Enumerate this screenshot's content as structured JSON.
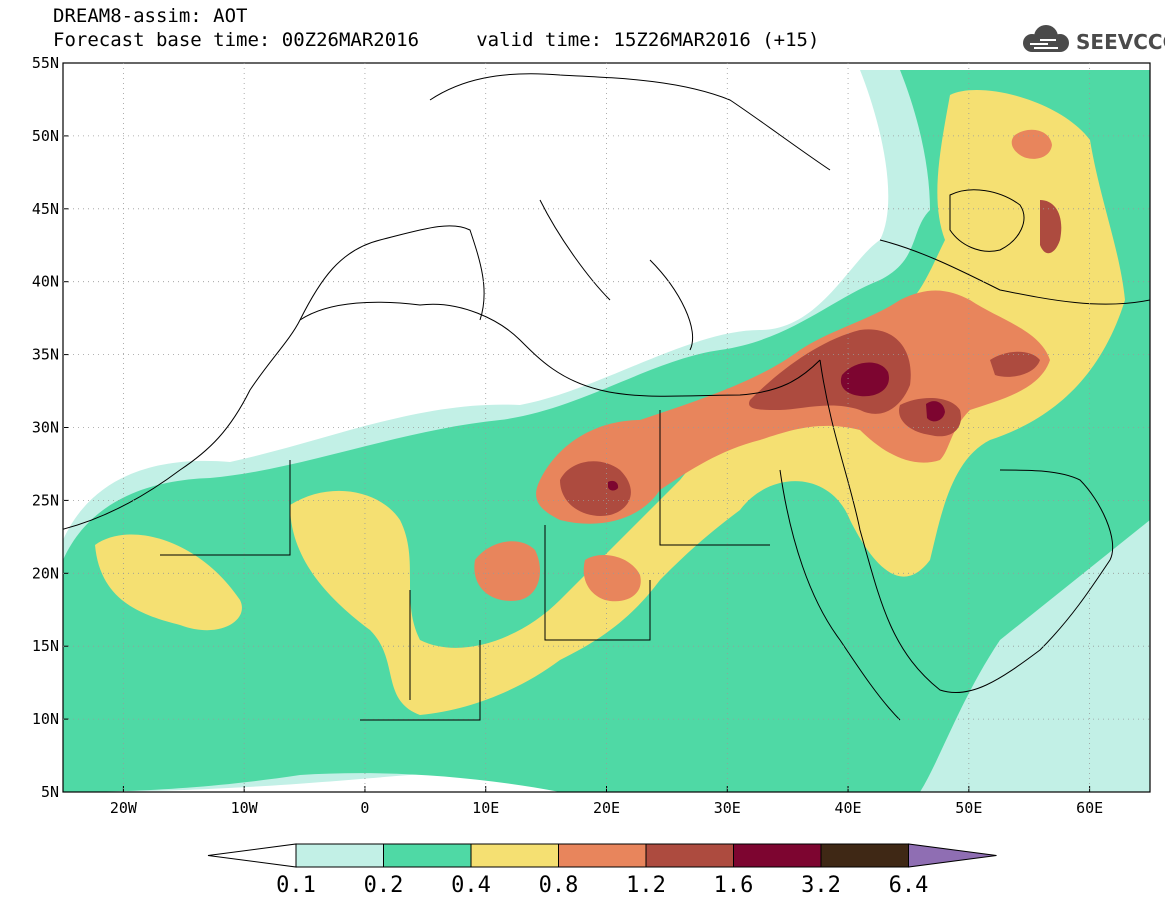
{
  "header": {
    "line1": "DREAM8-assim: AOT",
    "line2": "Forecast base time: 00Z26MAR2016     valid time: 15Z26MAR2016 (+15)"
  },
  "logo": {
    "text": "SEEVCCC",
    "icon": "cloud-icon",
    "color": "#4a4a4a"
  },
  "map": {
    "lon_range": [
      -25,
      65
    ],
    "lat_range": [
      5,
      55
    ],
    "lat_labels": [
      {
        "value": 55,
        "text": "55N"
      },
      {
        "value": 50,
        "text": "50N"
      },
      {
        "value": 45,
        "text": "45N"
      },
      {
        "value": 40,
        "text": "40N"
      },
      {
        "value": 35,
        "text": "35N"
      },
      {
        "value": 30,
        "text": "30N"
      },
      {
        "value": 25,
        "text": "25N"
      },
      {
        "value": 20,
        "text": "20N"
      },
      {
        "value": 15,
        "text": "15N"
      },
      {
        "value": 10,
        "text": "10N"
      },
      {
        "value": 5,
        "text": "5N"
      }
    ],
    "lon_labels": [
      {
        "value": -20,
        "text": "20W"
      },
      {
        "value": -10,
        "text": "10W"
      },
      {
        "value": 0,
        "text": "0"
      },
      {
        "value": 10,
        "text": "10E"
      },
      {
        "value": 20,
        "text": "20E"
      },
      {
        "value": 30,
        "text": "30E"
      },
      {
        "value": 40,
        "text": "40E"
      },
      {
        "value": 50,
        "text": "50E"
      },
      {
        "value": 60,
        "text": "60E"
      }
    ],
    "dust_fields": [
      {
        "level": 0.1,
        "lon": 20,
        "lat": 25,
        "rx": 46,
        "ry": 24
      },
      {
        "level": 0.2,
        "lon": 12,
        "lat": 20,
        "rx": 38,
        "ry": 12
      },
      {
        "level": 0.4,
        "lon": 10,
        "lat": 20,
        "rx": 22,
        "ry": 7
      },
      {
        "level": 0.8,
        "lon": 20,
        "lat": 26,
        "rx": 7,
        "ry": 4
      },
      {
        "level": 1.2,
        "lon": 41,
        "lat": 34,
        "rx": 8,
        "ry": 3.5
      },
      {
        "level": 1.6,
        "lon": 43,
        "lat": 33,
        "rx": 2.5,
        "ry": 1.6
      },
      {
        "level": 0.4,
        "lon": 52,
        "lat": 47,
        "rx": 8,
        "ry": 5
      },
      {
        "level": 0.8,
        "lon": 52,
        "lat": 39,
        "rx": 7,
        "ry": 3
      }
    ]
  },
  "colorbar": {
    "colors": [
      "#ffffff",
      "#c2f0e6",
      "#4fd9a5",
      "#f5e072",
      "#e8855c",
      "#ad4b3f",
      "#7d0530",
      "#3f2815",
      "#8f6eb3"
    ],
    "labels": [
      "0.1",
      "0.2",
      "0.4",
      "0.8",
      "1.2",
      "1.6",
      "3.2",
      "6.4"
    ]
  }
}
